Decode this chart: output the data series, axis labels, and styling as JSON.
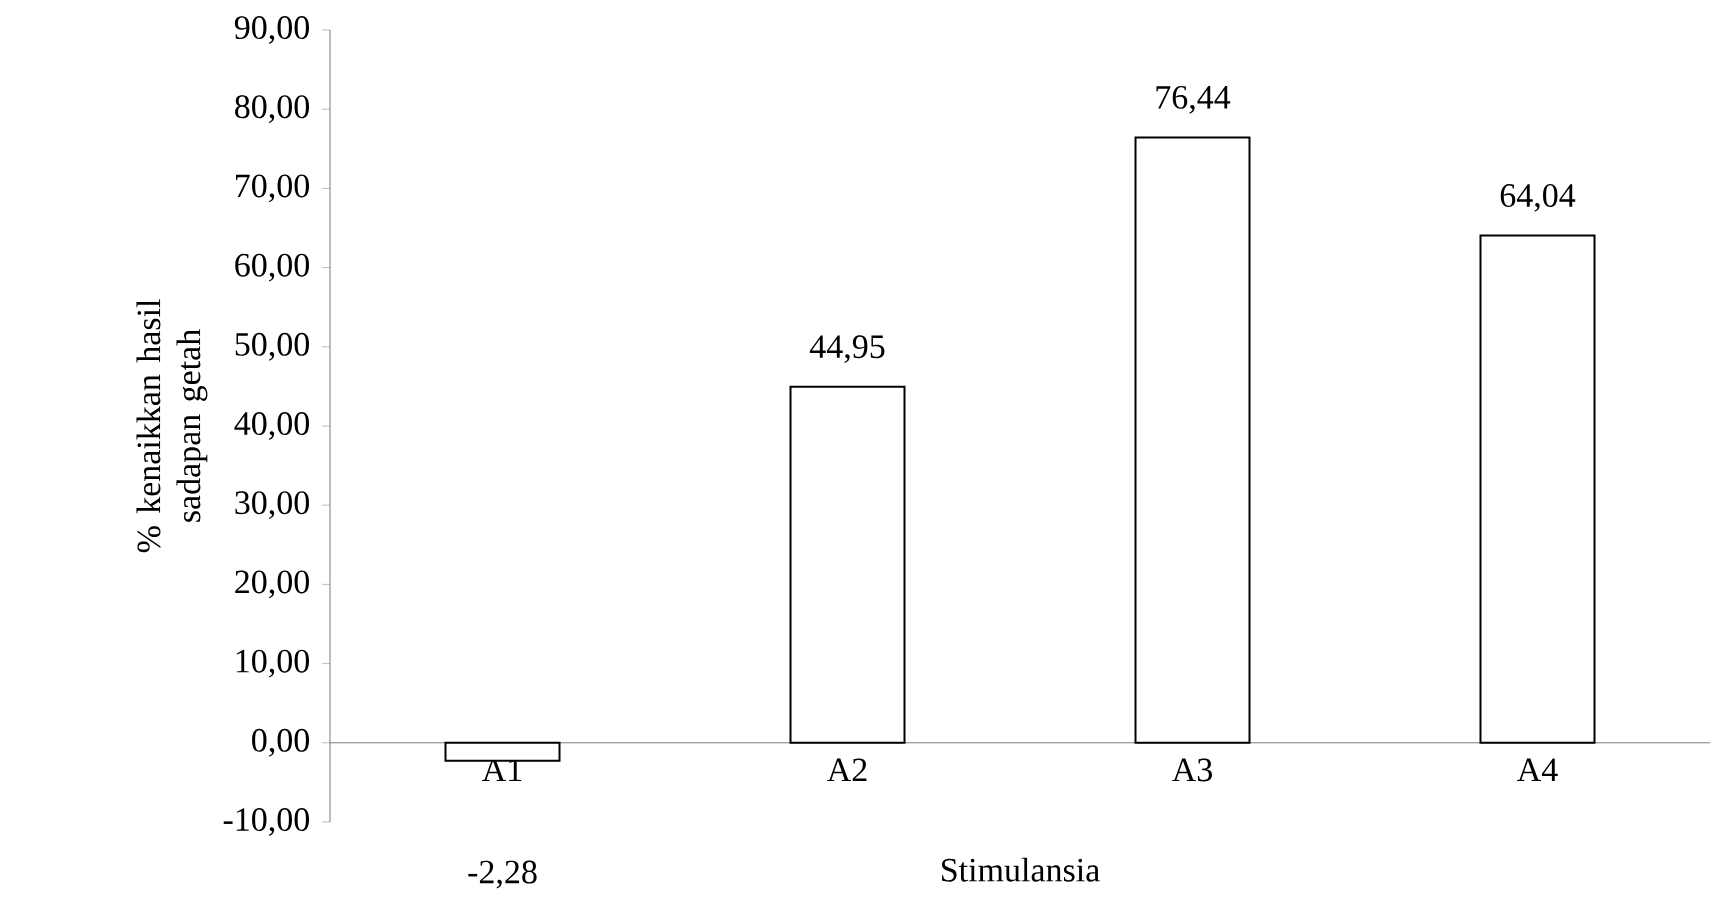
{
  "chart_data": {
    "type": "bar",
    "xlabel": "Stimulansia",
    "ylabel": "% kenaikkan hasil sadapan getah",
    "categories": [
      "A1",
      "A2",
      "A3",
      "A4"
    ],
    "values": [
      -2.28,
      44.95,
      76.44,
      64.04
    ],
    "value_labels": [
      "-2,28",
      "44,95",
      "76,44",
      "64,04"
    ],
    "color": "#ffffff",
    "ylim": [
      -10,
      90
    ],
    "yticks": [
      {
        "value": -10,
        "label": "-10,00"
      },
      {
        "value": 0,
        "label": "0,00"
      },
      {
        "value": 10,
        "label": "10,00"
      },
      {
        "value": 20,
        "label": "20,00"
      },
      {
        "value": 30,
        "label": "30,00"
      },
      {
        "value": 40,
        "label": "40,00"
      },
      {
        "value": 50,
        "label": "50,00"
      },
      {
        "value": 60,
        "label": "60,00"
      },
      {
        "value": 70,
        "label": "70,00"
      },
      {
        "value": 80,
        "label": "80,00"
      },
      {
        "value": 90,
        "label": "90,00"
      }
    ],
    "grid": false
  }
}
